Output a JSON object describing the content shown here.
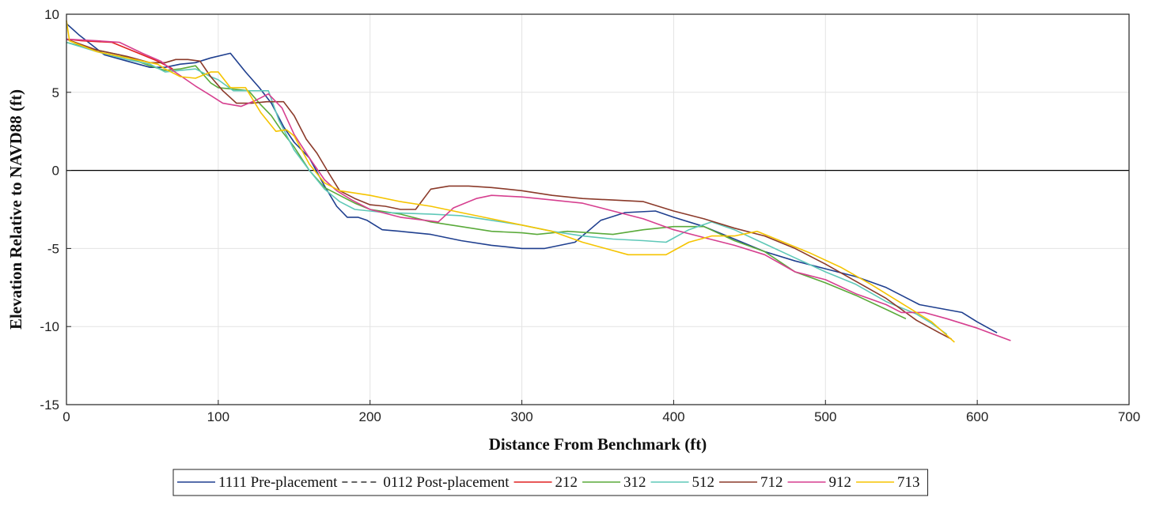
{
  "chart_data": {
    "type": "line",
    "title": "",
    "xlabel": "Distance From Benchmark (ft)",
    "ylabel": "Elevation Relative to NAVD88 (ft)",
    "xlim": [
      0,
      700
    ],
    "ylim": [
      -15,
      10
    ],
    "xticks": [
      0,
      100,
      200,
      300,
      400,
      500,
      600,
      700
    ],
    "yticks": [
      10,
      5,
      0,
      -5,
      -10,
      -15
    ],
    "grid": true,
    "reference_line": 0,
    "legend_position": "bottom",
    "series": [
      {
        "name": "1111 Pre-placement",
        "color": "#1f3f8f",
        "dash": "solid",
        "points": [
          [
            0,
            9.4
          ],
          [
            8,
            8.7
          ],
          [
            25,
            7.4
          ],
          [
            40,
            7
          ],
          [
            55,
            6.6
          ],
          [
            65,
            6.6
          ],
          [
            75,
            6.8
          ],
          [
            85,
            6.9
          ],
          [
            95,
            7.2
          ],
          [
            108,
            7.5
          ],
          [
            118,
            6.3
          ],
          [
            127,
            5.3
          ],
          [
            135,
            4.3
          ],
          [
            143,
            2.8
          ],
          [
            150,
            1.8
          ],
          [
            160,
            0.8
          ],
          [
            170,
            -1
          ],
          [
            178,
            -2.3
          ],
          [
            185,
            -3
          ],
          [
            192,
            -3
          ],
          [
            198,
            -3.2
          ],
          [
            208,
            -3.8
          ],
          [
            220,
            -3.9
          ],
          [
            240,
            -4.1
          ],
          [
            260,
            -4.5
          ],
          [
            280,
            -4.8
          ],
          [
            300,
            -5
          ],
          [
            315,
            -5
          ],
          [
            335,
            -4.6
          ],
          [
            352,
            -3.2
          ],
          [
            368,
            -2.7
          ],
          [
            388,
            -2.6
          ],
          [
            400,
            -3
          ],
          [
            420,
            -3.6
          ],
          [
            440,
            -4.4
          ],
          [
            460,
            -5.2
          ],
          [
            480,
            -5.8
          ],
          [
            500,
            -6.3
          ],
          [
            520,
            -6.8
          ],
          [
            540,
            -7.5
          ],
          [
            562,
            -8.6
          ],
          [
            590,
            -9.1
          ],
          [
            600,
            -9.7
          ],
          [
            613,
            -10.4
          ]
        ]
      },
      {
        "name": "0112 Post-placement",
        "color": "#333333",
        "dash": "dashed",
        "points": []
      },
      {
        "name": "212",
        "color": "#e02020",
        "dash": "solid",
        "points": [
          [
            0,
            8.4
          ],
          [
            10,
            8.3
          ],
          [
            30,
            8.2
          ],
          [
            45,
            7.6
          ],
          [
            60,
            7
          ],
          [
            70,
            6.5
          ]
        ]
      },
      {
        "name": "312",
        "color": "#5aaa3a",
        "dash": "solid",
        "points": [
          [
            0,
            8.2
          ],
          [
            20,
            7.7
          ],
          [
            35,
            7.4
          ],
          [
            55,
            6.7
          ],
          [
            65,
            6.4
          ],
          [
            75,
            6.5
          ],
          [
            85,
            6.7
          ],
          [
            95,
            5.6
          ],
          [
            100,
            5.3
          ],
          [
            110,
            5.2
          ],
          [
            120,
            5.1
          ],
          [
            128,
            4.2
          ],
          [
            135,
            3.5
          ],
          [
            142,
            2.5
          ],
          [
            150,
            1.5
          ],
          [
            160,
            0
          ],
          [
            170,
            -1.1
          ],
          [
            180,
            -1.6
          ],
          [
            190,
            -2.1
          ],
          [
            200,
            -2.5
          ],
          [
            220,
            -2.8
          ],
          [
            240,
            -3.3
          ],
          [
            260,
            -3.6
          ],
          [
            280,
            -3.9
          ],
          [
            300,
            -4
          ],
          [
            310,
            -4.1
          ],
          [
            330,
            -3.9
          ],
          [
            345,
            -4
          ],
          [
            360,
            -4.1
          ],
          [
            380,
            -3.8
          ],
          [
            400,
            -3.6
          ],
          [
            420,
            -3.6
          ],
          [
            440,
            -4.5
          ],
          [
            460,
            -5.2
          ],
          [
            480,
            -6.5
          ],
          [
            500,
            -7.2
          ],
          [
            520,
            -8
          ],
          [
            540,
            -8.9
          ],
          [
            553,
            -9.5
          ]
        ]
      },
      {
        "name": "512",
        "color": "#5fc8b8",
        "dash": "solid",
        "points": [
          [
            0,
            8.2
          ],
          [
            20,
            7.6
          ],
          [
            40,
            7.1
          ],
          [
            55,
            6.8
          ],
          [
            65,
            6.3
          ],
          [
            75,
            6.4
          ],
          [
            85,
            6.5
          ],
          [
            95,
            6
          ],
          [
            100,
            5.8
          ],
          [
            110,
            5.1
          ],
          [
            118,
            5.1
          ],
          [
            125,
            5.1
          ],
          [
            133,
            5.1
          ],
          [
            140,
            3.2
          ],
          [
            150,
            1.3
          ],
          [
            160,
            0
          ],
          [
            170,
            -1.2
          ],
          [
            180,
            -2
          ],
          [
            190,
            -2.5
          ],
          [
            210,
            -2.7
          ],
          [
            240,
            -2.8
          ],
          [
            260,
            -2.9
          ],
          [
            280,
            -3.2
          ],
          [
            300,
            -3.5
          ],
          [
            320,
            -3.9
          ],
          [
            340,
            -4.2
          ],
          [
            360,
            -4.4
          ],
          [
            380,
            -4.5
          ],
          [
            395,
            -4.6
          ],
          [
            410,
            -3.8
          ],
          [
            425,
            -3.3
          ],
          [
            440,
            -3.8
          ],
          [
            460,
            -4.7
          ],
          [
            480,
            -5.6
          ],
          [
            500,
            -6.5
          ],
          [
            520,
            -7.3
          ],
          [
            540,
            -8.4
          ],
          [
            560,
            -9.2
          ],
          [
            570,
            -9.8
          ],
          [
            580,
            -10.5
          ]
        ]
      },
      {
        "name": "712",
        "color": "#8b3a2a",
        "dash": "solid",
        "points": [
          [
            0,
            8.4
          ],
          [
            20,
            7.7
          ],
          [
            40,
            7.3
          ],
          [
            55,
            6.9
          ],
          [
            65,
            6.9
          ],
          [
            72,
            7.1
          ],
          [
            80,
            7.1
          ],
          [
            88,
            7
          ],
          [
            95,
            6
          ],
          [
            103,
            5.1
          ],
          [
            112,
            4.3
          ],
          [
            122,
            4.3
          ],
          [
            132,
            4.4
          ],
          [
            143,
            4.4
          ],
          [
            150,
            3.5
          ],
          [
            158,
            2
          ],
          [
            165,
            1.1
          ],
          [
            173,
            -0.2
          ],
          [
            180,
            -1.3
          ],
          [
            190,
            -1.8
          ],
          [
            200,
            -2.2
          ],
          [
            210,
            -2.3
          ],
          [
            220,
            -2.5
          ],
          [
            230,
            -2.5
          ],
          [
            240,
            -1.2
          ],
          [
            252,
            -1
          ],
          [
            265,
            -1
          ],
          [
            280,
            -1.1
          ],
          [
            300,
            -1.3
          ],
          [
            320,
            -1.6
          ],
          [
            340,
            -1.8
          ],
          [
            360,
            -1.9
          ],
          [
            380,
            -2
          ],
          [
            400,
            -2.6
          ],
          [
            420,
            -3.1
          ],
          [
            440,
            -3.7
          ],
          [
            460,
            -4.2
          ],
          [
            480,
            -5
          ],
          [
            500,
            -6
          ],
          [
            520,
            -7.1
          ],
          [
            540,
            -8.2
          ],
          [
            560,
            -9.6
          ],
          [
            575,
            -10.4
          ],
          [
            583,
            -10.8
          ]
        ]
      },
      {
        "name": "912",
        "color": "#d63f8f",
        "dash": "solid",
        "points": [
          [
            0,
            8.4
          ],
          [
            20,
            8.3
          ],
          [
            35,
            8.2
          ],
          [
            50,
            7.5
          ],
          [
            62,
            7
          ],
          [
            70,
            6.4
          ],
          [
            85,
            5.4
          ],
          [
            95,
            4.8
          ],
          [
            103,
            4.3
          ],
          [
            115,
            4.1
          ],
          [
            125,
            4.5
          ],
          [
            133,
            4.9
          ],
          [
            142,
            4
          ],
          [
            150,
            2.3
          ],
          [
            160,
            0.8
          ],
          [
            170,
            -0.6
          ],
          [
            178,
            -1.3
          ],
          [
            188,
            -1.9
          ],
          [
            200,
            -2.5
          ],
          [
            220,
            -3
          ],
          [
            245,
            -3.3
          ],
          [
            255,
            -2.4
          ],
          [
            270,
            -1.8
          ],
          [
            280,
            -1.6
          ],
          [
            300,
            -1.7
          ],
          [
            320,
            -1.9
          ],
          [
            340,
            -2.1
          ],
          [
            360,
            -2.6
          ],
          [
            380,
            -3.1
          ],
          [
            400,
            -3.8
          ],
          [
            420,
            -4.3
          ],
          [
            440,
            -4.8
          ],
          [
            460,
            -5.4
          ],
          [
            480,
            -6.5
          ],
          [
            500,
            -7
          ],
          [
            520,
            -7.9
          ],
          [
            540,
            -8.6
          ],
          [
            550,
            -9.1
          ],
          [
            565,
            -9.1
          ],
          [
            580,
            -9.5
          ],
          [
            600,
            -10.1
          ],
          [
            622,
            -10.9
          ]
        ]
      },
      {
        "name": "713",
        "color": "#f5c400",
        "dash": "solid",
        "points": [
          [
            0,
            9.6
          ],
          [
            2,
            8.3
          ],
          [
            20,
            7.6
          ],
          [
            40,
            7.2
          ],
          [
            60,
            6.8
          ],
          [
            65,
            6.5
          ],
          [
            75,
            6
          ],
          [
            85,
            5.9
          ],
          [
            95,
            6.3
          ],
          [
            100,
            6.3
          ],
          [
            108,
            5.3
          ],
          [
            118,
            5.3
          ],
          [
            128,
            3.7
          ],
          [
            138,
            2.5
          ],
          [
            145,
            2.6
          ],
          [
            150,
            2.2
          ],
          [
            160,
            0.4
          ],
          [
            170,
            -0.8
          ],
          [
            180,
            -1.3
          ],
          [
            200,
            -1.6
          ],
          [
            220,
            -2
          ],
          [
            240,
            -2.3
          ],
          [
            260,
            -2.7
          ],
          [
            280,
            -3.1
          ],
          [
            300,
            -3.5
          ],
          [
            320,
            -3.9
          ],
          [
            340,
            -4.6
          ],
          [
            355,
            -5
          ],
          [
            370,
            -5.4
          ],
          [
            395,
            -5.4
          ],
          [
            410,
            -4.6
          ],
          [
            425,
            -4.2
          ],
          [
            440,
            -4.2
          ],
          [
            455,
            -3.9
          ],
          [
            470,
            -4.5
          ],
          [
            490,
            -5.3
          ],
          [
            510,
            -6.2
          ],
          [
            530,
            -7.3
          ],
          [
            550,
            -8.5
          ],
          [
            570,
            -9.7
          ],
          [
            585,
            -11
          ]
        ]
      }
    ]
  }
}
